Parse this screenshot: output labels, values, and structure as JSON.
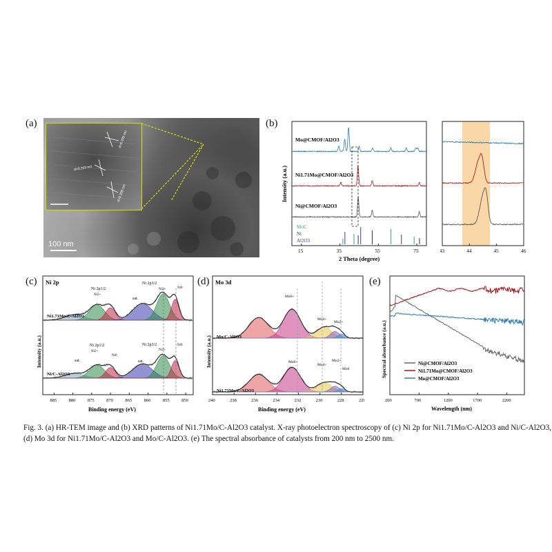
{
  "figure": {
    "panel_labels": {
      "a": "(a)",
      "b": "(b)",
      "c": "(c)",
      "d": "(d)",
      "e": "(e)"
    },
    "caption": "Fig. 3. (a) HR-TEM image and (b) XRD patterns of Ni1.71Mo/C-Al2O3 catalyst. X-ray photoelectron spectroscopy of (c) Ni 2p for Ni1.71Mo/C-Al2O3 and Ni/C-Al2O3, (d) Mo 3d for Ni1.71Mo/C-Al2O3 and Mo/C-Al2O3. (e) The spectral absorbance of catalysts from 200 nm to 2500 nm.",
    "caption_line1": "Fig. 3. (a) HR-TEM image and (b) XRD patterns of Ni1.71Mo/C-Al2O3 catalyst. X-ray photoelectron spectroscopy of (c) Ni 2p for Ni1.71Mo/C-Al2O3 and Ni/C-Al2O3,",
    "caption_line2": "(d) Mo 3d for Ni1.71Mo/C-Al2O3 and Mo/C-Al2O3. (e) The spectral absorbance of catalysts from 200 nm to 2500 nm."
  },
  "panel_a": {
    "scale_bar": "100 nm",
    "inset_labels": [
      "d=0.209 nm",
      "d=0.203 nm",
      "d=0.208 nm"
    ]
  },
  "chart_data": [
    {
      "id": "b-main",
      "type": "line",
      "xlabel": "2 Theta (degree)",
      "ylabel": "Intensity (a.u.)",
      "xlim": [
        10,
        80
      ],
      "xticks": [
        15,
        35,
        55,
        75
      ],
      "series": [
        {
          "name": "Mo@CMOF/Al2O3",
          "color": "#2a7ab5",
          "peaks": [
            [
              34.4,
              3
            ],
            [
              37.5,
              7
            ],
            [
              39.5,
              14
            ],
            [
              45,
              3
            ],
            [
              52,
              2
            ],
            [
              61.5,
              2
            ],
            [
              69.5,
              2
            ],
            [
              74.5,
              2
            ],
            [
              75.5,
              2
            ]
          ]
        },
        {
          "name": "Ni1.71Mo@CMOF/Al2O3",
          "color": "#b01c22",
          "peaks": [
            [
              35.5,
              2
            ],
            [
              44.4,
              12
            ],
            [
              51.8,
              3
            ],
            [
              76.3,
              2
            ]
          ]
        },
        {
          "name": "Ni@CMOF/Al2O3",
          "color": "#555555",
          "peaks": [
            [
              44.5,
              12
            ],
            [
              51.8,
              4
            ],
            [
              76.3,
              3
            ]
          ]
        }
      ],
      "reference_legend": [
        "MoC",
        "Ni",
        "Al2O3"
      ],
      "reference_colors": [
        "#3aa07a",
        "#333333",
        "#3a3aa8"
      ],
      "reference_lines": {
        "MoC": [
          36.5,
          42.3,
          61.5,
          73.6
        ],
        "Ni": [
          44.5,
          51.8,
          76.4
        ],
        "Al2O3": [
          37.6,
          45.8,
          67.0
        ]
      }
    },
    {
      "id": "b-zoom",
      "type": "line",
      "xlim": [
        43,
        46
      ],
      "xticks": [
        43,
        44,
        45,
        46
      ],
      "highlight": [
        43.8,
        44.8
      ],
      "series_order": [
        "Mo@CMOF/Al2O3",
        "Ni1.71Mo@CMOF/Al2O3",
        "Ni@CMOF/Al2O3"
      ]
    },
    {
      "id": "c",
      "type": "line",
      "title": "Ni 2p",
      "xlabel": "Binding energy (eV)",
      "ylabel": "Intensity (a.u.)",
      "xlim": [
        888,
        848
      ],
      "xticks": [
        885,
        880,
        875,
        870,
        865,
        860,
        855,
        850
      ],
      "series": [
        {
          "name": "Ni1.71Mo/C-Al2O3"
        },
        {
          "name": "Ni/C-Al2O3"
        }
      ],
      "annotations_top": [
        "Ni 2p1/2",
        "Ni2+",
        "sat.",
        "Ni 2p3/2",
        "Ni2+",
        "Ni0"
      ],
      "annotations_bottom": [
        "sat.",
        "Ni 2p1/2",
        "Ni2+",
        "Ni0",
        "sat.",
        "Ni 2p3/2",
        "Ni2+",
        "Ni0"
      ],
      "components": [
        {
          "center": 879.5,
          "color": "#7fa8c9",
          "label": "sat."
        },
        {
          "center": 873.6,
          "color": "#2f8a4a",
          "label": "Ni2+"
        },
        {
          "center": 870.0,
          "color": "#c0284a",
          "label": "Ni0"
        },
        {
          "center": 861.5,
          "color": "#3a3ab0",
          "label": "sat."
        },
        {
          "center": 856.0,
          "color": "#2f8a4a",
          "label": "Ni2+"
        },
        {
          "center": 852.8,
          "color": "#c0284a",
          "label": "Ni0"
        }
      ]
    },
    {
      "id": "d",
      "type": "line",
      "title": "Mo 3d",
      "xlabel": "Binding energy (eV)",
      "ylabel": "Intensity (a.u.)",
      "xlim": [
        240,
        226
      ],
      "xticks": [
        240,
        238,
        236,
        234,
        232,
        230,
        228,
        226
      ],
      "series": [
        {
          "name": "Mo/C-Al2O3"
        },
        {
          "name": "Ni1.71Mo/C-Al2O3"
        }
      ],
      "annotations_top": [
        "Mo6+",
        "Mo4+",
        "Mo2+"
      ],
      "annotations_bottom": [
        "Mo6+",
        "Mo4+",
        "Mo2+",
        "Mo0"
      ],
      "components": [
        {
          "center": 235.7,
          "color": "#e25b5b",
          "label": "Mo6+"
        },
        {
          "center": 232.6,
          "color": "#c63a8a",
          "label": "Mo6+"
        },
        {
          "center": 229.6,
          "color": "#e6c84a",
          "label": "Mo4+"
        },
        {
          "center": 228.6,
          "color": "#8a5cc0",
          "label": "Mo2+"
        },
        {
          "center": 228.0,
          "color": "#3a8fd0",
          "label": "Mo0"
        }
      ]
    },
    {
      "id": "e",
      "type": "line",
      "xlabel": "Wavelength (nm)",
      "ylabel": "Spectral absorbance (a.u.)",
      "xlim": [
        200,
        2500
      ],
      "xticks": [
        200,
        700,
        1200,
        1700,
        2200
      ],
      "series": [
        {
          "name": "Ni@CMOF/Al2O3",
          "color": "#666666"
        },
        {
          "name": "Ni1.71Mo@CMOF/Al2O3",
          "color": "#a0141c"
        },
        {
          "name": "Mo@CMOF/Al2O3",
          "color": "#2a7ab5"
        }
      ]
    }
  ]
}
